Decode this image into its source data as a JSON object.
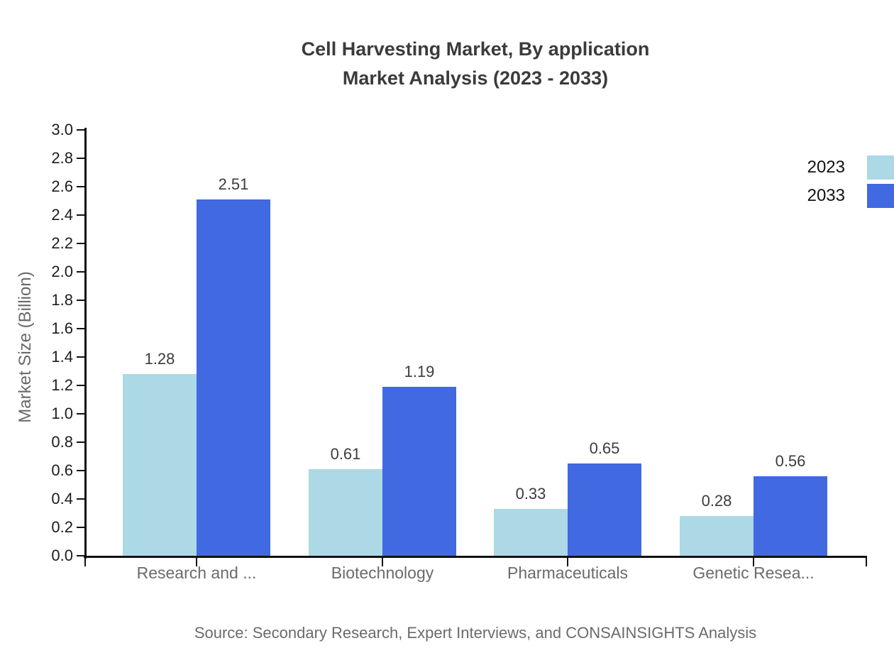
{
  "title": {
    "line1": "Cell Harvesting Market, By application",
    "line2": "Market Analysis (2023 - 2033)"
  },
  "source": "Source: Secondary Research, Expert Interviews, and CONSAINSIGHTS Analysis",
  "colors": {
    "series_2023": "#ADD8E6",
    "series_2033": "#4169E1",
    "axis": "#111111",
    "title_text": "#3b3b3b",
    "muted_text": "#6b6b6b"
  },
  "chart_data": {
    "type": "bar",
    "title": "Cell Harvesting Market, By application Market Analysis (2023 - 2033)",
    "categories": [
      "Research and ...",
      "Biotechnology",
      "Pharmaceuticals",
      "Genetic Resea..."
    ],
    "series": [
      {
        "name": "2023",
        "color": "#ADD8E6",
        "values": [
          1.28,
          0.61,
          0.33,
          0.28
        ]
      },
      {
        "name": "2033",
        "color": "#4169E1",
        "values": [
          2.51,
          1.19,
          0.65,
          0.56
        ]
      }
    ],
    "value_labels": [
      [
        "1.28",
        "0.61",
        "0.33",
        "0.28"
      ],
      [
        "2.51",
        "1.19",
        "0.65",
        "0.56"
      ]
    ],
    "xlabel": "",
    "ylabel": "Market Size (Billion)",
    "ylim": [
      0.0,
      3.0
    ],
    "ytick_step": 0.2,
    "y_tick_labels": [
      "0.0",
      "0.2",
      "0.4",
      "0.6",
      "0.8",
      "1.0",
      "1.2",
      "1.4",
      "1.6",
      "1.8",
      "2.0",
      "2.2",
      "2.4",
      "2.6",
      "2.8",
      "3.0"
    ],
    "grid": false,
    "legend_position": "top-right",
    "bar_value_labels": true
  }
}
